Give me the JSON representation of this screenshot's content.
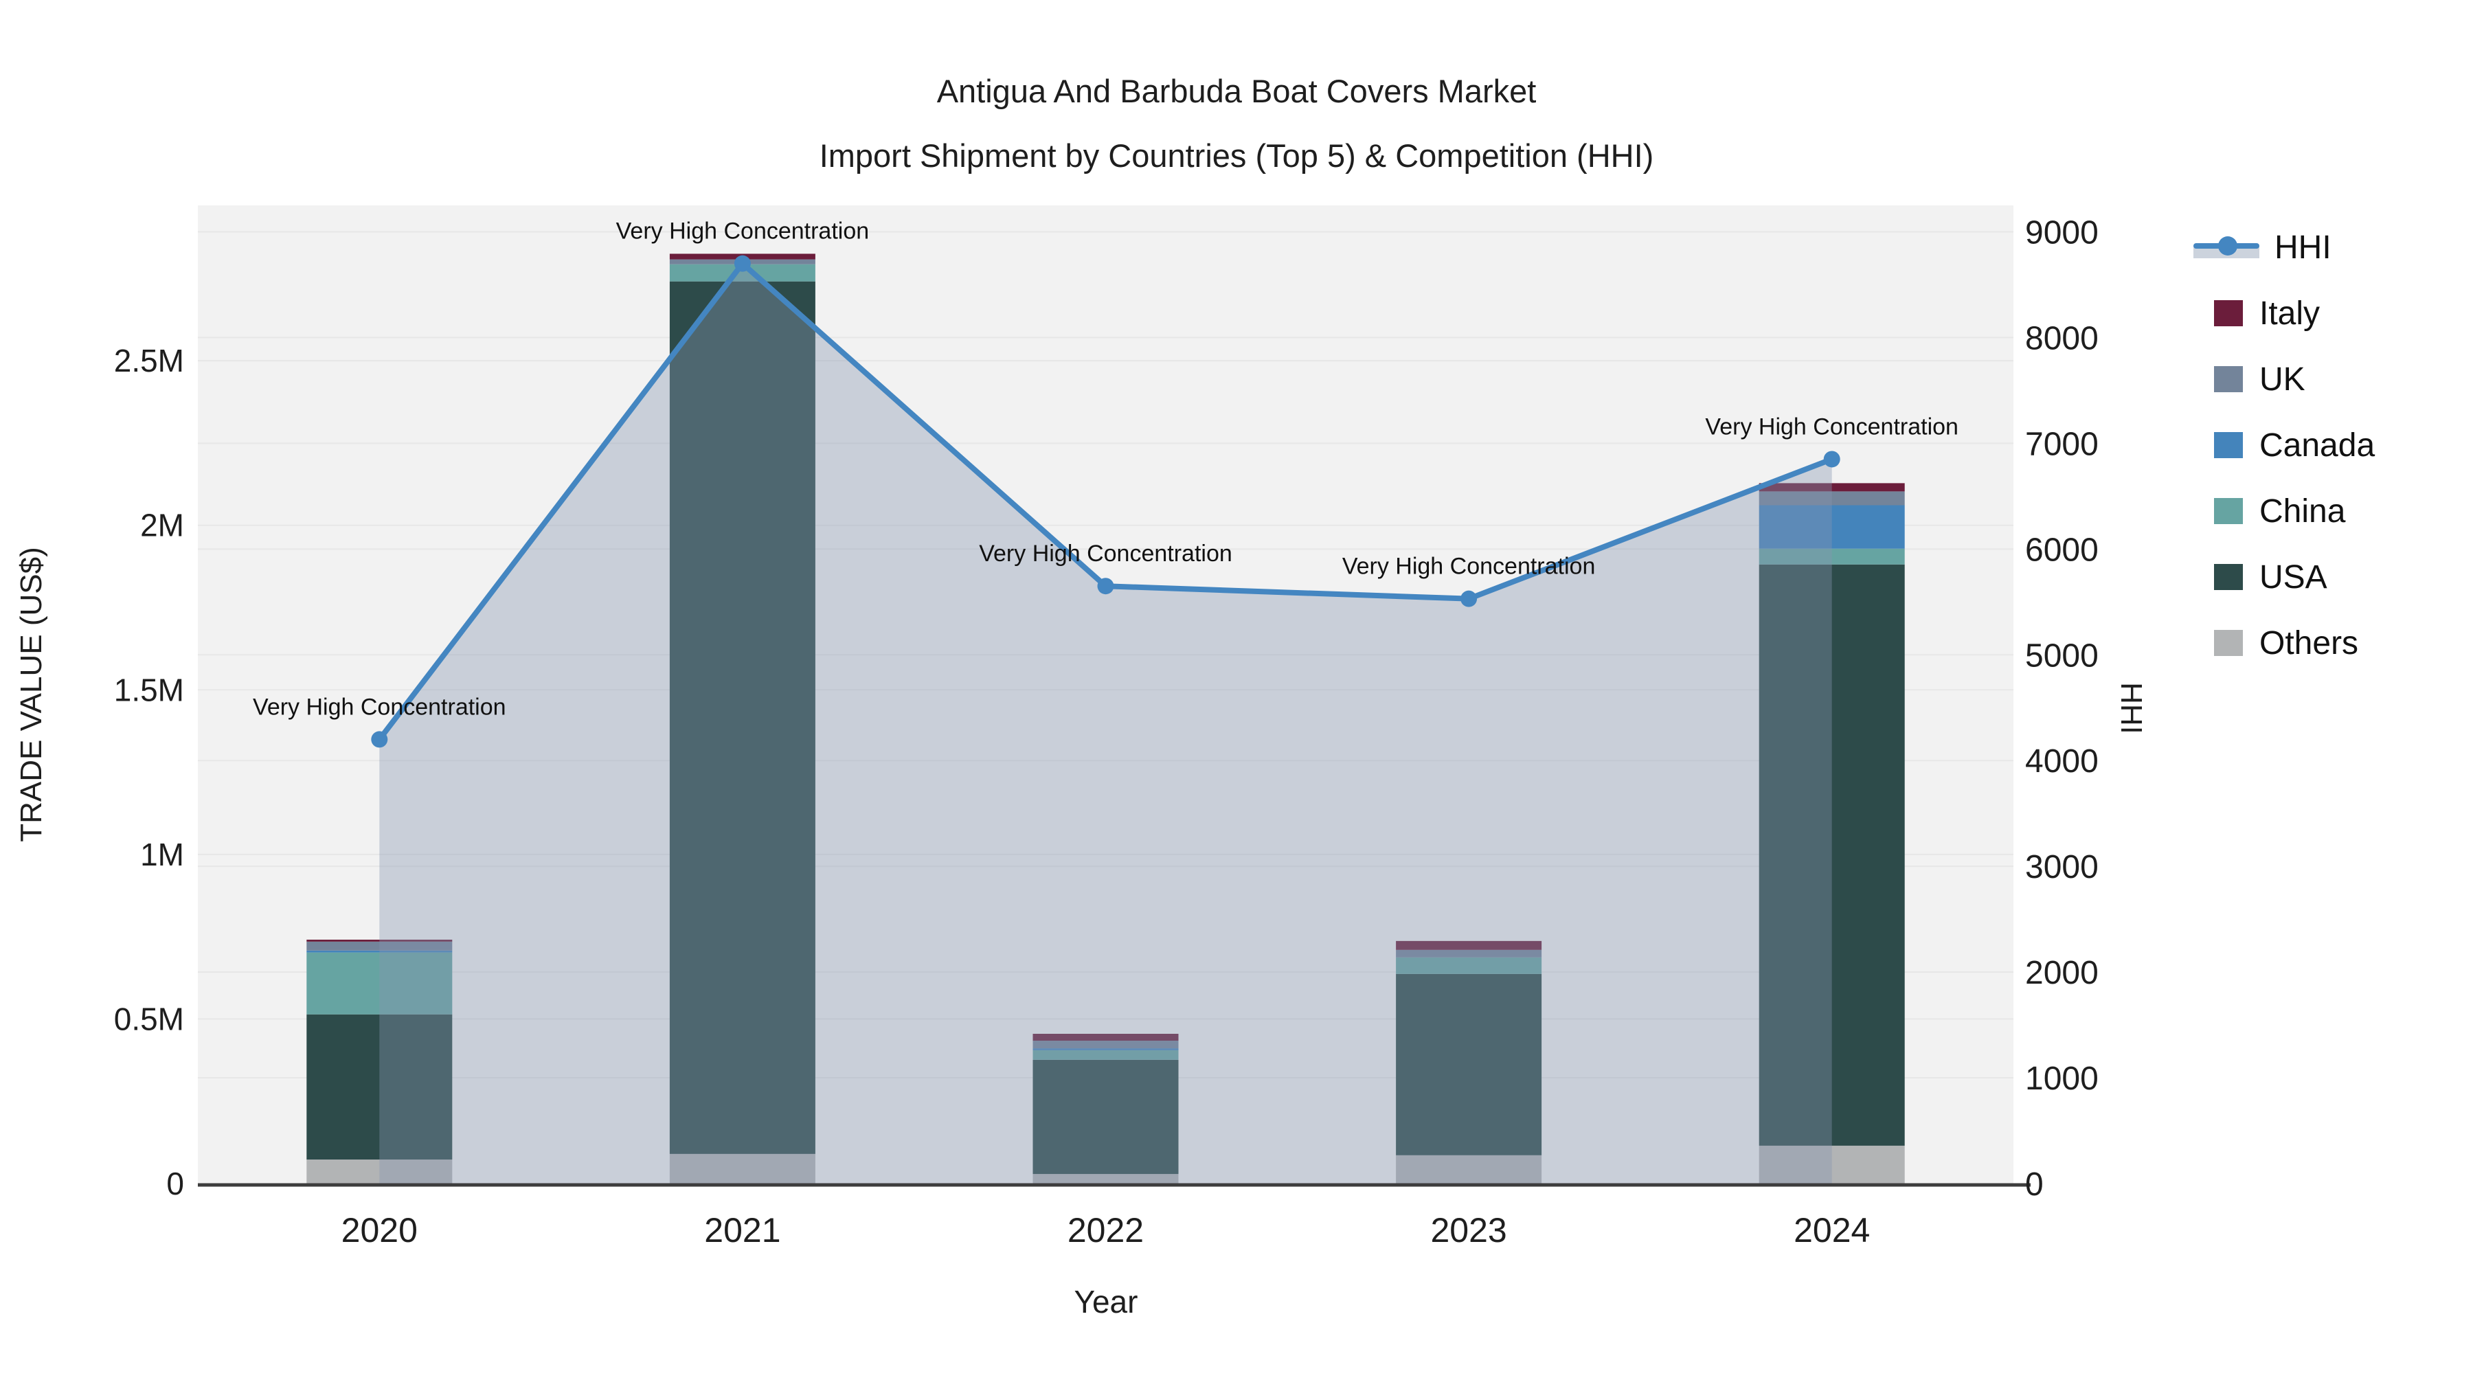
{
  "title": {
    "line1": "Antigua And Barbuda Boat Covers Market",
    "line2": "Import Shipment by Countries (Top 5) & Competition (HHI)"
  },
  "axes": {
    "y_left": {
      "title": "TRADE VALUE (US$)",
      "tick_labels": [
        "0",
        "0.5M",
        "1M",
        "1.5M",
        "2M",
        "2.5M"
      ],
      "tick_values": [
        0,
        500000,
        1000000,
        1500000,
        2000000,
        2500000
      ],
      "max": 2972000
    },
    "y_right": {
      "title": "HHI",
      "tick_labels": [
        "0",
        "1000",
        "2000",
        "3000",
        "4000",
        "5000",
        "6000",
        "7000",
        "8000",
        "9000"
      ],
      "tick_values": [
        0,
        1000,
        2000,
        3000,
        4000,
        5000,
        6000,
        7000,
        8000,
        9000
      ],
      "max": 9250
    },
    "x": {
      "title": "Year",
      "categories": [
        "2020",
        "2021",
        "2022",
        "2023",
        "2024"
      ]
    }
  },
  "legend": {
    "items": [
      {
        "label": "HHI",
        "type": "line",
        "color": "#4486c1"
      },
      {
        "label": "Italy",
        "type": "swatch",
        "color": "#6b1d3b"
      },
      {
        "label": "UK",
        "type": "swatch",
        "color": "#73849a"
      },
      {
        "label": "Canada",
        "type": "swatch",
        "color": "#4484bb"
      },
      {
        "label": "China",
        "type": "swatch",
        "color": "#66a4a2"
      },
      {
        "label": "USA",
        "type": "swatch",
        "color": "#2d4b4a"
      },
      {
        "label": "Others",
        "type": "swatch",
        "color": "#b2b4b5"
      }
    ]
  },
  "colors": {
    "plot_bg": "#f2f2f2",
    "grid": "#e7e7e7",
    "axis_line": "#3d3d3d",
    "hhi_line": "#4486c1",
    "hhi_area": "rgba(135,150,175,0.38)",
    "text": "#1e1e1e"
  },
  "chart_data": {
    "type": "bar+line",
    "title": "Antigua And Barbuda Boat Covers Market — Import Shipment by Countries (Top 5) & Competition (HHI)",
    "categories": [
      "2020",
      "2021",
      "2022",
      "2023",
      "2024"
    ],
    "stack_order_note": "series listed bottom-to-top of the stacked bars; values in US$",
    "series": [
      {
        "name": "Others",
        "color": "#b2b4b5",
        "values": [
          73000,
          90000,
          29000,
          86000,
          115000
        ]
      },
      {
        "name": "USA",
        "color": "#2d4b4a",
        "values": [
          441000,
          2651000,
          347000,
          551000,
          1766000
        ]
      },
      {
        "name": "China",
        "color": "#66a4a2",
        "values": [
          188000,
          52000,
          29000,
          50000,
          48000
        ]
      },
      {
        "name": "Canada",
        "color": "#4484bb",
        "values": [
          6000,
          0,
          6000,
          0,
          132000
        ]
      },
      {
        "name": "UK",
        "color": "#73849a",
        "values": [
          27000,
          15000,
          23000,
          23000,
          42000
        ]
      },
      {
        "name": "Italy",
        "color": "#6b1d3b",
        "values": [
          6000,
          17000,
          21000,
          27000,
          25000
        ]
      }
    ],
    "bar_totals": [
      741000,
      2825000,
      455000,
      737000,
      2128000
    ],
    "line_series": {
      "name": "HHI",
      "axis": "right",
      "color": "#4486c1",
      "values": [
        4200,
        8700,
        5650,
        5530,
        6850
      ]
    },
    "annotations": [
      "Very High Concentration",
      "Very High Concentration",
      "Very High Concentration",
      "Very High Concentration",
      "Very High Concentration"
    ],
    "xlabel": "Year",
    "ylabel_left": "TRADE VALUE (US$)",
    "ylabel_right": "HHI",
    "ylim_left": [
      0,
      2972000
    ],
    "ylim_right": [
      0,
      9250
    ],
    "grid": true,
    "legend_position": "right"
  }
}
